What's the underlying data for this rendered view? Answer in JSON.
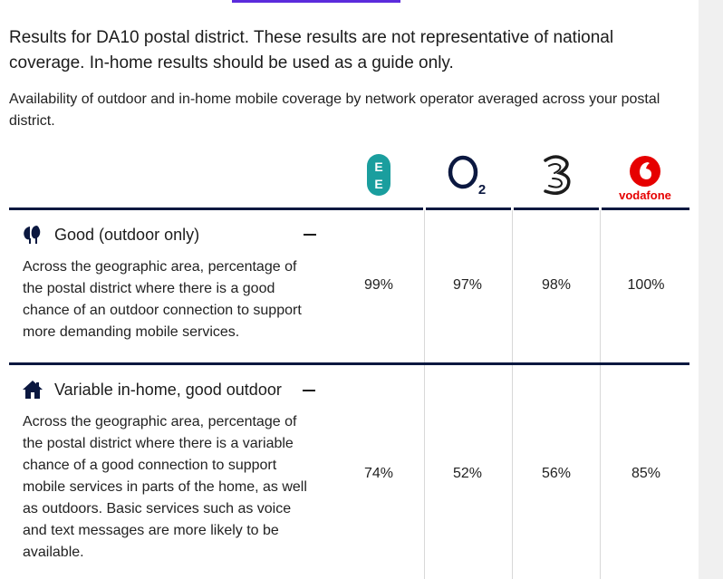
{
  "intro": "Results for DA10 postal district. These results are not representative of national coverage. In-home results should be used as a guide only.",
  "subtitle": "Availability of outdoor and in-home mobile coverage by network operator averaged across your postal district.",
  "operators": [
    {
      "name": "EE",
      "icon": "ee-logo-icon",
      "color": "#1a9e9e"
    },
    {
      "name": "O2",
      "icon": "o2-logo-icon",
      "color": "#0b1840"
    },
    {
      "name": "Three",
      "icon": "three-logo-icon",
      "color": "#1c1c1c"
    },
    {
      "name": "vodafone",
      "icon": "vodafone-logo-icon",
      "color": "#e60000"
    }
  ],
  "sections": [
    {
      "title": "Good (outdoor only)",
      "icon": "trees-icon",
      "description": "Across the geographic area, percentage of the postal district where there is a good chance of an outdoor connection to support more demanding mobile services.",
      "values": [
        "99%",
        "97%",
        "98%",
        "100%"
      ]
    },
    {
      "title": "Variable in-home, good outdoor",
      "icon": "house-icon",
      "description": "Across the geographic area, percentage of the postal district where there is a variable chance of a good connection to support mobile services in parts of the home, as well as outdoors. Basic services such as voice and text messages are more likely to be available.",
      "values": [
        "74%",
        "52%",
        "56%",
        "85%"
      ]
    }
  ]
}
